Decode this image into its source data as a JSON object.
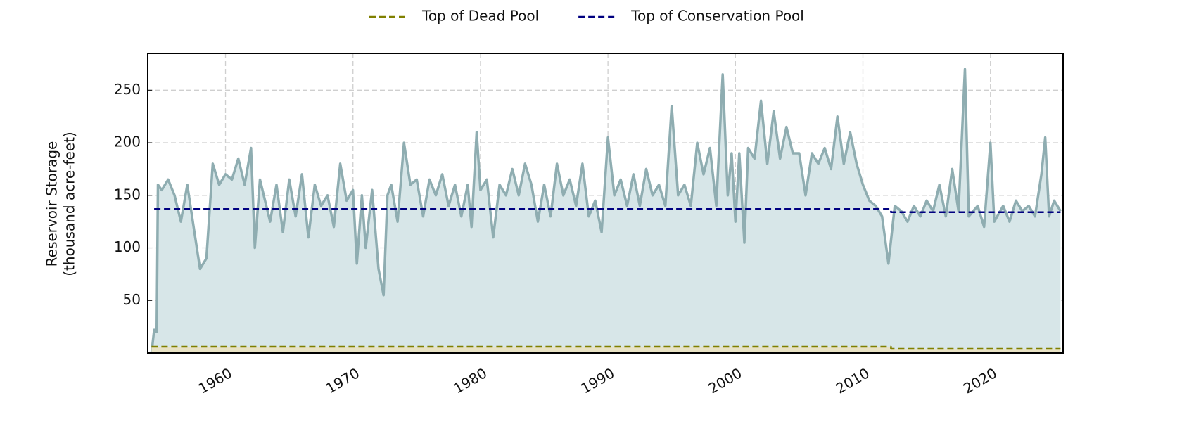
{
  "chart_data": {
    "type": "line",
    "y_label": [
      "Reservoir Storage",
      "(thousand acre-feet)"
    ],
    "xlim": [
      1953.9,
      2025.7
    ],
    "xticks": [
      1960,
      1970,
      1980,
      1990,
      2000,
      2010,
      2020
    ],
    "ylim": [
      0,
      285
    ],
    "yticks": [
      50,
      100,
      150,
      200,
      250
    ],
    "grid": true,
    "legend": "top",
    "series": [
      {
        "name": "Top of Dead Pool",
        "color": "#808000",
        "fill": "#e8e2c4",
        "dashed": true,
        "legend": true,
        "x": [
          1954.2,
          2012.2,
          2012.2,
          2025.5
        ],
        "values": [
          6,
          6,
          4,
          4
        ]
      },
      {
        "name": "Top of Conservation Pool",
        "color": "#000080",
        "dashed": true,
        "legend": true,
        "x": [
          1954.4,
          2012.2,
          2012.2,
          2025.5
        ],
        "values": [
          137,
          137,
          134,
          134
        ]
      },
      {
        "color": "#8fadb1",
        "fill": "#d7e6e8",
        "dashed": false,
        "legend": false,
        "x": [
          1954.2,
          1954.4,
          1954.6,
          1954.7,
          1955,
          1955.5,
          1956,
          1956.5,
          1957,
          1957.5,
          1958,
          1958.5,
          1959,
          1959.5,
          1960,
          1960.5,
          1961,
          1961.5,
          1962,
          1962.3,
          1962.7,
          1963,
          1963.5,
          1964,
          1964.5,
          1965,
          1965.5,
          1966,
          1966.5,
          1967,
          1967.5,
          1968,
          1968.5,
          1969,
          1969.5,
          1970,
          1970.3,
          1970.7,
          1971,
          1971.5,
          1972,
          1972.4,
          1972.7,
          1973,
          1973.5,
          1974,
          1974.5,
          1975,
          1975.5,
          1976,
          1976.5,
          1977,
          1977.5,
          1978,
          1978.5,
          1979,
          1979.3,
          1979.7,
          1980,
          1980.5,
          1981,
          1981.5,
          1982,
          1982.5,
          1983,
          1983.5,
          1984,
          1984.5,
          1985,
          1985.5,
          1986,
          1986.5,
          1987,
          1987.5,
          1988,
          1988.5,
          1989,
          1989.5,
          1990,
          1990.5,
          1991,
          1991.5,
          1992,
          1992.5,
          1993,
          1993.5,
          1994,
          1994.5,
          1995,
          1995.5,
          1996,
          1996.5,
          1997,
          1997.5,
          1998,
          1998.5,
          1999,
          1999.4,
          1999.7,
          2000,
          2000.3,
          2000.7,
          2001,
          2001.5,
          2002,
          2002.5,
          2003,
          2003.5,
          2004,
          2004.5,
          2005,
          2005.5,
          2006,
          2006.5,
          2007,
          2007.5,
          2008,
          2008.5,
          2009,
          2009.5,
          2010,
          2010.5,
          2011,
          2011.5,
          2012,
          2012.5,
          2013,
          2013.5,
          2014,
          2014.5,
          2015,
          2015.5,
          2016,
          2016.5,
          2017,
          2017.5,
          2018,
          2018.3,
          2019,
          2019.5,
          2020,
          2020.3,
          2021,
          2021.5,
          2022,
          2022.5,
          2023,
          2023.5,
          2024,
          2024.3,
          2024.6,
          2025,
          2025.5
        ],
        "values": [
          0,
          22,
          20,
          160,
          155,
          165,
          150,
          125,
          160,
          120,
          80,
          90,
          180,
          160,
          170,
          165,
          185,
          160,
          195,
          100,
          165,
          150,
          125,
          160,
          115,
          165,
          130,
          170,
          110,
          160,
          140,
          150,
          120,
          180,
          145,
          155,
          85,
          150,
          100,
          155,
          80,
          55,
          150,
          160,
          125,
          200,
          160,
          165,
          130,
          165,
          150,
          170,
          140,
          160,
          130,
          160,
          120,
          210,
          155,
          165,
          110,
          160,
          150,
          175,
          150,
          180,
          160,
          125,
          160,
          130,
          180,
          150,
          165,
          140,
          180,
          130,
          145,
          115,
          205,
          150,
          165,
          140,
          170,
          140,
          175,
          150,
          160,
          140,
          235,
          150,
          160,
          140,
          200,
          170,
          195,
          140,
          265,
          150,
          190,
          125,
          190,
          105,
          195,
          185,
          240,
          180,
          230,
          185,
          215,
          190,
          190,
          150,
          190,
          180,
          195,
          175,
          225,
          180,
          210,
          180,
          160,
          145,
          140,
          130,
          85,
          140,
          135,
          125,
          140,
          130,
          145,
          135,
          160,
          130,
          175,
          135,
          270,
          130,
          140,
          120,
          200,
          125,
          140,
          125,
          145,
          135,
          140,
          130,
          170,
          205,
          130,
          145,
          135
        ]
      }
    ]
  }
}
